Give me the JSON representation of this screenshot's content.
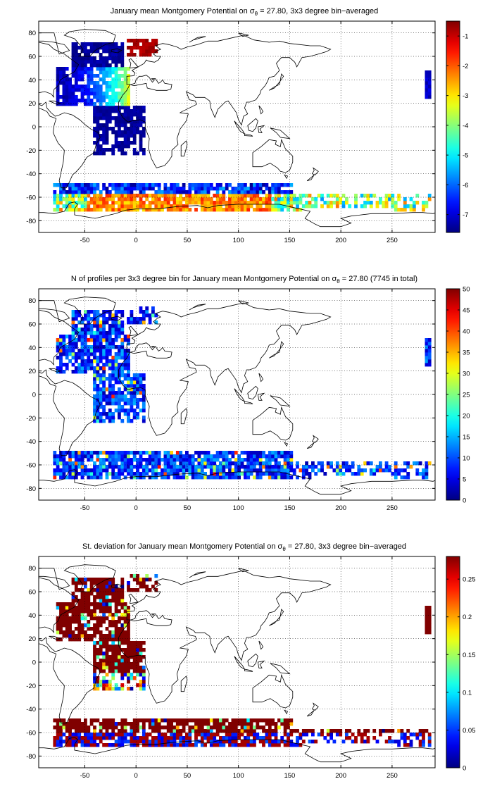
{
  "figure": {
    "colormap": "jet",
    "panels": [
      {
        "title_parts": [
          "January mean Montgomery Potential on ",
          "σ",
          "θ",
          " = 27.80, 3x3 degree bin−averaged"
        ],
        "colorbar": {
          "min": -7.6,
          "max": -0.5,
          "ticks": [
            "-1",
            "-2",
            "-3",
            "-4",
            "-5",
            "-6",
            "-7"
          ],
          "tick_values": [
            -1,
            -2,
            -3,
            -4,
            -5,
            -6,
            -7
          ]
        }
      },
      {
        "title_parts": [
          "N of profiles per 3x3 degree bin for January mean Montgomery Potential on ",
          "σ",
          "θ",
          " = 27.80 (7745 in total)"
        ],
        "colorbar": {
          "min": 0,
          "max": 50,
          "ticks": [
            "50",
            "45",
            "40",
            "35",
            "30",
            "25",
            "20",
            "15",
            "10",
            "5",
            "0"
          ],
          "tick_values": [
            50,
            45,
            40,
            35,
            30,
            25,
            20,
            15,
            10,
            5,
            0
          ]
        }
      },
      {
        "title_parts": [
          "St. deviation for January mean Montgomery Potential on ",
          "σ",
          "θ",
          " = 27.80, 3x3 degree bin−averaged"
        ],
        "colorbar": {
          "min": 0,
          "max": 0.28,
          "ticks": [
            "0.25",
            "0.2",
            "0.15",
            "0.1",
            "0.05",
            "0"
          ],
          "tick_values": [
            0.25,
            0.2,
            0.15,
            0.1,
            0.05,
            0
          ]
        }
      }
    ],
    "map_axes": {
      "xlim": [
        -95,
        292
      ],
      "ylim": [
        -90,
        90
      ],
      "xticks": [
        "-50",
        "0",
        "50",
        "100",
        "150",
        "200",
        "250"
      ],
      "xtick_values": [
        -50,
        0,
        50,
        100,
        150,
        200,
        250
      ],
      "yticks": [
        "80",
        "60",
        "40",
        "20",
        "0",
        "-20",
        "-40",
        "-60",
        "-80"
      ],
      "ytick_values": [
        80,
        60,
        40,
        20,
        0,
        -20,
        -40,
        -60,
        -80
      ],
      "grid": "dotted"
    }
  }
}
